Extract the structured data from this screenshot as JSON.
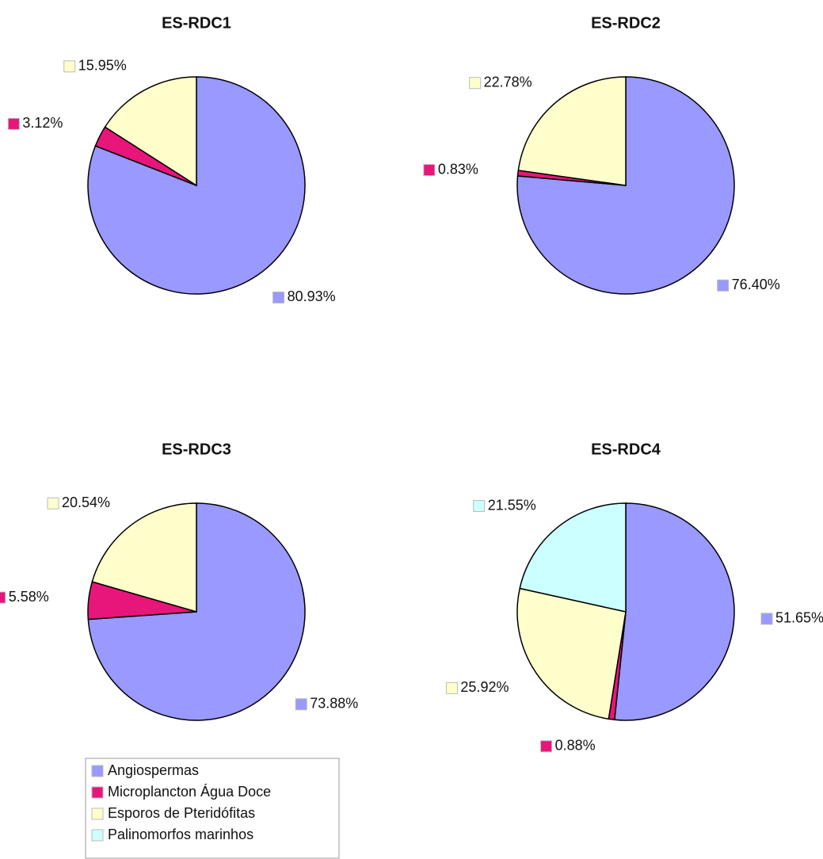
{
  "chart_data": [
    {
      "type": "pie",
      "title": "ES-RDC1",
      "categories": [
        "Angiospermas",
        "Microplancton Água Doce",
        "Esporos de Pteridófitas"
      ],
      "values": [
        80.93,
        3.12,
        15.95
      ],
      "value_labels": [
        "80.93%",
        "3.12%",
        "15.95%"
      ],
      "colors": [
        "#9999ff",
        "#e8157a",
        "#ffffcc"
      ]
    },
    {
      "type": "pie",
      "title": "ES-RDC2",
      "categories": [
        "Angiospermas",
        "Microplancton Água Doce",
        "Esporos de Pteridófitas"
      ],
      "values": [
        76.4,
        0.83,
        22.78
      ],
      "value_labels": [
        "76.40%",
        "0.83%",
        "22.78%"
      ],
      "colors": [
        "#9999ff",
        "#e8157a",
        "#ffffcc"
      ]
    },
    {
      "type": "pie",
      "title": "ES-RDC3",
      "categories": [
        "Angiospermas",
        "Microplancton Água Doce",
        "Esporos de Pteridófitas"
      ],
      "values": [
        73.88,
        5.58,
        20.54
      ],
      "value_labels": [
        "73.88%",
        "5.58%",
        "20.54%"
      ],
      "colors": [
        "#9999ff",
        "#e8157a",
        "#ffffcc"
      ]
    },
    {
      "type": "pie",
      "title": "ES-RDC4",
      "categories": [
        "Angiospermas",
        "Microplancton Água Doce",
        "Esporos de Pteridófitas",
        "Palinomorfos marinhos"
      ],
      "values": [
        51.65,
        0.88,
        25.92,
        21.55
      ],
      "value_labels": [
        "51.65%",
        "0.88%",
        "25.92%",
        "21.55%"
      ],
      "colors": [
        "#9999ff",
        "#e8157a",
        "#ffffcc",
        "#ccffff"
      ]
    }
  ],
  "legend": {
    "labels": [
      "Angiospermas",
      "Microplancton Água Doce",
      "Esporos de Pteridófitas",
      "Palinomorfos marinhos"
    ],
    "colors": [
      "#9999ff",
      "#e8157a",
      "#ffffcc",
      "#ccffff"
    ]
  }
}
